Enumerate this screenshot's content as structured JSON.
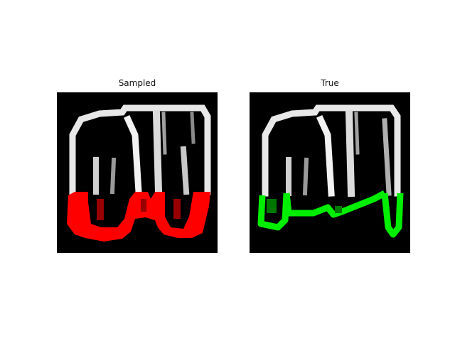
{
  "panels": [
    {
      "title": "Sampled",
      "overlay_color": "#ff0000"
    },
    {
      "title": "True",
      "overlay_color": "#00ff00"
    }
  ]
}
